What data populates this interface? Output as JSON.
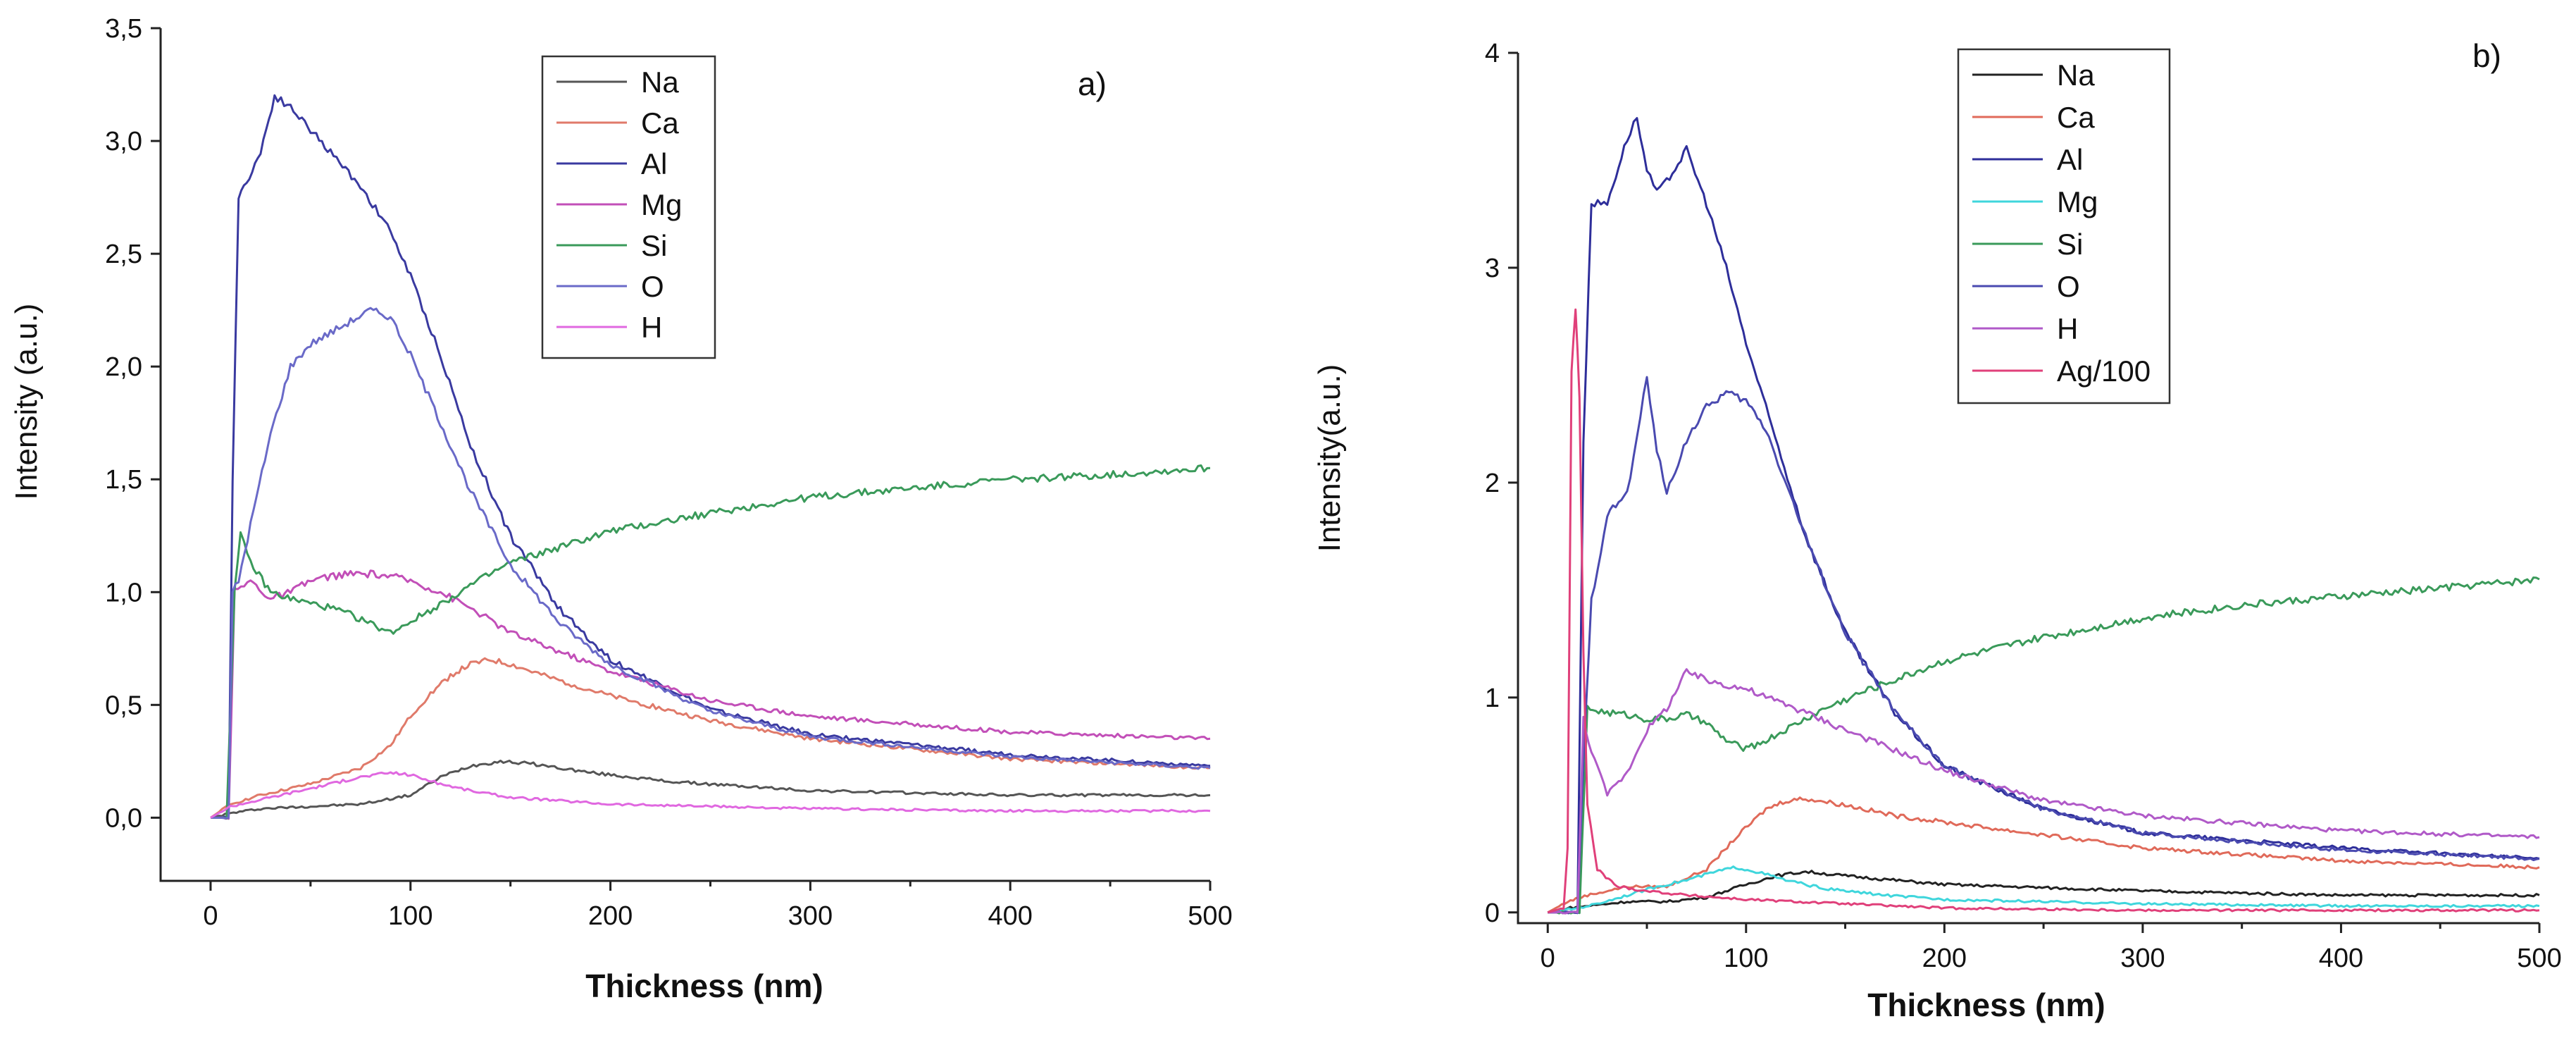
{
  "chart_data": [
    {
      "type": "line",
      "panel": "a)",
      "xlabel": "Thickness (nm)",
      "ylabel": "Intensity (a.u.)",
      "xlim": [
        -25,
        500
      ],
      "ylim": [
        -0.28,
        3.5
      ],
      "xticks": [
        0,
        100,
        200,
        300,
        400,
        500
      ],
      "xtick_labels": [
        "0",
        "100",
        "200",
        "300",
        "400",
        "500"
      ],
      "yticks": [
        0,
        0.5,
        1.0,
        1.5,
        2.0,
        2.5,
        3.0,
        3.5
      ],
      "ytick_labels": [
        "0,0",
        "0,5",
        "1,0",
        "1,5",
        "2,0",
        "2,5",
        "3,0",
        "3,5"
      ],
      "legend_position": "top-center",
      "series": [
        {
          "name": "Na",
          "color": "#555555",
          "x": [
            0,
            10,
            25,
            50,
            75,
            100,
            115,
            130,
            145,
            160,
            190,
            230,
            300,
            400,
            500
          ],
          "y": [
            0,
            0.02,
            0.04,
            0.05,
            0.06,
            0.1,
            0.18,
            0.23,
            0.25,
            0.24,
            0.2,
            0.16,
            0.12,
            0.1,
            0.1
          ]
        },
        {
          "name": "Ca",
          "color": "#e07a6a",
          "x": [
            0,
            10,
            25,
            50,
            75,
            90,
            100,
            110,
            120,
            130,
            140,
            150,
            170,
            200,
            250,
            300,
            400,
            500
          ],
          "y": [
            0,
            0.06,
            0.1,
            0.15,
            0.22,
            0.32,
            0.45,
            0.55,
            0.63,
            0.68,
            0.7,
            0.68,
            0.62,
            0.54,
            0.43,
            0.35,
            0.26,
            0.22
          ]
        },
        {
          "name": "Al",
          "color": "#3a3aa0",
          "x": [
            0,
            9,
            11,
            14,
            18,
            25,
            32,
            40,
            50,
            60,
            75,
            90,
            100,
            115,
            130,
            150,
            175,
            200,
            250,
            300,
            400,
            500
          ],
          "y": [
            0,
            0,
            1.5,
            2.75,
            2.82,
            2.95,
            3.2,
            3.15,
            3.05,
            2.95,
            2.8,
            2.6,
            2.4,
            2.05,
            1.65,
            1.25,
            0.92,
            0.7,
            0.48,
            0.37,
            0.28,
            0.23
          ]
        },
        {
          "name": "Mg",
          "color": "#c24fb8",
          "x": [
            0,
            9,
            12,
            20,
            30,
            40,
            50,
            60,
            70,
            80,
            90,
            100,
            115,
            130,
            150,
            200,
            250,
            300,
            400,
            500
          ],
          "y": [
            0,
            0,
            1.0,
            1.05,
            0.97,
            1.0,
            1.05,
            1.07,
            1.08,
            1.08,
            1.07,
            1.05,
            1.0,
            0.93,
            0.82,
            0.65,
            0.52,
            0.45,
            0.38,
            0.35
          ]
        },
        {
          "name": "Si",
          "color": "#3a9a5a",
          "x": [
            0,
            8,
            12,
            15,
            20,
            30,
            40,
            50,
            60,
            70,
            80,
            90,
            100,
            110,
            130,
            150,
            175,
            200,
            250,
            300,
            350,
            400,
            450,
            500
          ],
          "y": [
            0,
            0,
            1.0,
            1.25,
            1.13,
            1.0,
            0.97,
            0.95,
            0.93,
            0.9,
            0.86,
            0.82,
            0.87,
            0.92,
            1.03,
            1.13,
            1.2,
            1.27,
            1.35,
            1.42,
            1.46,
            1.5,
            1.52,
            1.55
          ]
        },
        {
          "name": "O",
          "color": "#6a6ac8",
          "x": [
            0,
            9,
            11,
            14,
            20,
            30,
            40,
            50,
            60,
            70,
            80,
            90,
            100,
            115,
            130,
            150,
            175,
            200,
            250,
            300,
            400,
            500
          ],
          "y": [
            0,
            0,
            1.0,
            1.05,
            1.3,
            1.7,
            2.0,
            2.1,
            2.15,
            2.2,
            2.25,
            2.22,
            2.05,
            1.75,
            1.45,
            1.12,
            0.86,
            0.68,
            0.47,
            0.36,
            0.27,
            0.22
          ]
        },
        {
          "name": "H",
          "color": "#e068e0",
          "x": [
            0,
            10,
            25,
            50,
            75,
            90,
            100,
            115,
            130,
            150,
            200,
            300,
            400,
            500
          ],
          "y": [
            0,
            0.05,
            0.08,
            0.13,
            0.18,
            0.2,
            0.19,
            0.15,
            0.12,
            0.09,
            0.06,
            0.04,
            0.03,
            0.03
          ]
        }
      ]
    },
    {
      "type": "line",
      "panel": "b)",
      "xlabel": "Thickness (nm)",
      "ylabel": "Intensity(a.u.)",
      "xlim": [
        -15,
        500
      ],
      "ylim": [
        -0.05,
        4.0
      ],
      "xticks": [
        0,
        100,
        200,
        300,
        400,
        500
      ],
      "xtick_labels": [
        "0",
        "100",
        "200",
        "300",
        "400",
        "500"
      ],
      "yticks": [
        0,
        1,
        2,
        3,
        4
      ],
      "ytick_labels": [
        "0",
        "1",
        "2",
        "3",
        "4"
      ],
      "legend_position": "top-center",
      "series": [
        {
          "name": "Na",
          "color": "#222222",
          "x": [
            0,
            10,
            20,
            40,
            60,
            80,
            100,
            115,
            130,
            150,
            200,
            300,
            400,
            500
          ],
          "y": [
            0,
            0.02,
            0.03,
            0.05,
            0.05,
            0.07,
            0.13,
            0.17,
            0.19,
            0.17,
            0.13,
            0.1,
            0.08,
            0.08
          ]
        },
        {
          "name": "Ca",
          "color": "#e06a5a",
          "x": [
            0,
            10,
            20,
            40,
            60,
            80,
            95,
            110,
            120,
            130,
            150,
            175,
            200,
            250,
            300,
            400,
            500
          ],
          "y": [
            0,
            0.05,
            0.08,
            0.12,
            0.12,
            0.2,
            0.35,
            0.48,
            0.52,
            0.53,
            0.5,
            0.45,
            0.42,
            0.36,
            0.3,
            0.24,
            0.21
          ]
        },
        {
          "name": "Al",
          "color": "#2e2e9a",
          "x": [
            0,
            15,
            18,
            22,
            30,
            40,
            45,
            50,
            55,
            60,
            70,
            80,
            90,
            100,
            110,
            130,
            150,
            175,
            200,
            250,
            300,
            400,
            500
          ],
          "y": [
            0,
            0,
            2.2,
            3.3,
            3.3,
            3.6,
            3.7,
            3.45,
            3.35,
            3.4,
            3.55,
            3.3,
            3.0,
            2.65,
            2.35,
            1.75,
            1.3,
            0.93,
            0.68,
            0.48,
            0.37,
            0.3,
            0.25
          ]
        },
        {
          "name": "Mg",
          "color": "#3fd6dc",
          "x": [
            0,
            15,
            25,
            40,
            55,
            70,
            85,
            95,
            105,
            120,
            140,
            170,
            200,
            300,
            400,
            500
          ],
          "y": [
            0,
            0.02,
            0.04,
            0.08,
            0.12,
            0.15,
            0.19,
            0.21,
            0.19,
            0.15,
            0.11,
            0.08,
            0.06,
            0.04,
            0.03,
            0.03
          ]
        },
        {
          "name": "Si",
          "color": "#3a9a5a",
          "x": [
            0,
            16,
            20,
            30,
            40,
            50,
            60,
            70,
            80,
            90,
            100,
            110,
            120,
            140,
            160,
            180,
            200,
            250,
            300,
            350,
            400,
            450,
            500
          ],
          "y": [
            0,
            0,
            0.95,
            0.93,
            0.92,
            0.9,
            0.9,
            0.92,
            0.88,
            0.8,
            0.76,
            0.8,
            0.85,
            0.95,
            1.03,
            1.1,
            1.17,
            1.28,
            1.37,
            1.43,
            1.47,
            1.51,
            1.55
          ]
        },
        {
          "name": "O",
          "color": "#4a4ab0",
          "x": [
            0,
            15,
            18,
            22,
            30,
            40,
            45,
            50,
            55,
            60,
            70,
            80,
            90,
            100,
            110,
            130,
            150,
            175,
            200,
            250,
            300,
            400,
            500
          ],
          "y": [
            0,
            0,
            0.7,
            1.45,
            1.85,
            1.95,
            2.2,
            2.5,
            2.15,
            1.95,
            2.2,
            2.35,
            2.42,
            2.38,
            2.25,
            1.75,
            1.3,
            0.93,
            0.68,
            0.48,
            0.37,
            0.29,
            0.25
          ]
        },
        {
          "name": "H",
          "color": "#b05ac8",
          "x": [
            0,
            15,
            18,
            22,
            30,
            40,
            50,
            60,
            70,
            80,
            90,
            100,
            110,
            120,
            150,
            200,
            250,
            300,
            400,
            500
          ],
          "y": [
            0,
            0,
            0.9,
            0.75,
            0.55,
            0.65,
            0.85,
            0.95,
            1.12,
            1.08,
            1.06,
            1.04,
            1.0,
            0.97,
            0.85,
            0.66,
            0.52,
            0.45,
            0.38,
            0.35
          ]
        },
        {
          "name": "Ag/100",
          "color": "#e0407a",
          "x": [
            0,
            8,
            10,
            12,
            14,
            16,
            18,
            20,
            25,
            35,
            50,
            70,
            100,
            150,
            200,
            300,
            500
          ],
          "y": [
            0,
            0.02,
            0.3,
            2.5,
            2.82,
            2.4,
            1.2,
            0.5,
            0.2,
            0.12,
            0.1,
            0.08,
            0.06,
            0.04,
            0.02,
            0.01,
            0.01
          ]
        }
      ]
    }
  ]
}
